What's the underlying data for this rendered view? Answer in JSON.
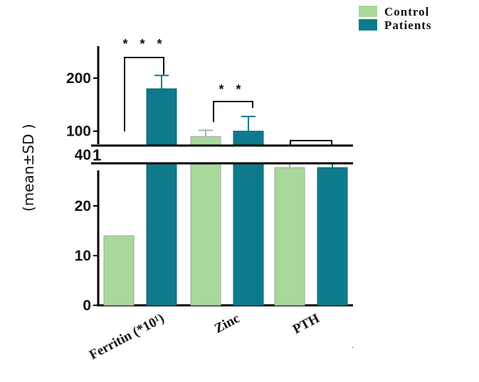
{
  "chart_data": {
    "type": "bar",
    "categories": [
      "Ferritin (*10¹)",
      "Zinc",
      "PTH"
    ],
    "series": [
      {
        "name": "Control",
        "color": "#a8d89a",
        "values": [
          14,
          90,
          38
        ],
        "errors": [
          null,
          12,
          2
        ]
      },
      {
        "name": "Patients",
        "color": "#0e7b8c",
        "values": [
          180,
          100,
          38
        ],
        "errors": [
          25,
          28,
          5
        ]
      }
    ],
    "ylabel": "(mean±SD )",
    "y_ticks": [
      "0",
      "10",
      "20",
      "40",
      "100",
      "200"
    ],
    "axis_break": true,
    "significance": [
      "* * *",
      "* *",
      ""
    ],
    "legend_position": "top-right",
    "grid": false
  }
}
